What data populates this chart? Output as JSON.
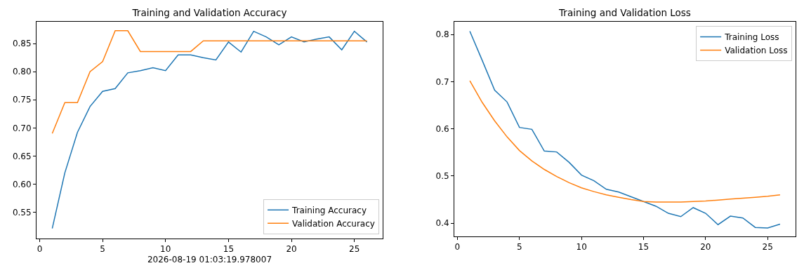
{
  "chart_data": [
    {
      "type": "line",
      "title": "Training and Validation Accuracy",
      "xlabel": "2026-08-19 01:03:19.978007",
      "x": [
        1,
        2,
        3,
        4,
        5,
        6,
        7,
        8,
        9,
        10,
        11,
        12,
        13,
        14,
        15,
        16,
        17,
        18,
        19,
        20,
        21,
        22,
        23,
        24,
        25,
        26
      ],
      "series": [
        {
          "name": "Training Accuracy",
          "color": "#1f77b4",
          "values": [
            0.521,
            0.62,
            0.692,
            0.738,
            0.765,
            0.77,
            0.798,
            0.802,
            0.807,
            0.802,
            0.83,
            0.83,
            0.825,
            0.821,
            0.853,
            0.835,
            0.872,
            0.862,
            0.848,
            0.862,
            0.853,
            0.858,
            0.862,
            0.839,
            0.872,
            0.853
          ]
        },
        {
          "name": "Validation Accuracy",
          "color": "#ff7f0e",
          "values": [
            0.69,
            0.745,
            0.745,
            0.8,
            0.818,
            0.873,
            0.873,
            0.836,
            0.836,
            0.836,
            0.836,
            0.836,
            0.855,
            0.855,
            0.855,
            0.855,
            0.855,
            0.855,
            0.855,
            0.855,
            0.855,
            0.855,
            0.855,
            0.855,
            0.855,
            0.855
          ]
        }
      ],
      "xlim": [
        -0.25,
        27.25
      ],
      "xticks": [
        0,
        5,
        10,
        15,
        20,
        25
      ],
      "ylim": [
        0.503,
        0.889
      ],
      "yticks": [
        0.55,
        {
          "value": 0.6,
          "label": "0.60"
        },
        0.65,
        {
          "value": 0.7,
          "label": "0.70"
        },
        0.75,
        {
          "value": 0.8,
          "label": "0.80"
        },
        0.85
      ],
      "grid": false,
      "legend": "bottom right",
      "line_style": "solid",
      "marker": "none"
    },
    {
      "type": "line",
      "title": "Training and Validation Loss",
      "x": [
        1,
        2,
        3,
        4,
        5,
        6,
        7,
        8,
        9,
        10,
        11,
        12,
        13,
        14,
        15,
        16,
        17,
        18,
        19,
        20,
        21,
        22,
        23,
        24,
        25,
        26
      ],
      "series": [
        {
          "name": "Training Loss",
          "color": "#1f77b4",
          "values": [
            0.807,
            0.745,
            0.682,
            0.657,
            0.603,
            0.599,
            0.553,
            0.551,
            0.529,
            0.502,
            0.49,
            0.472,
            0.466,
            0.456,
            0.446,
            0.436,
            0.421,
            0.414,
            0.433,
            0.421,
            0.397,
            0.415,
            0.411,
            0.391,
            0.39,
            0.398
          ]
        },
        {
          "name": "Validation Loss",
          "color": "#ff7f0e",
          "values": [
            0.702,
            0.656,
            0.617,
            0.583,
            0.554,
            0.532,
            0.514,
            0.499,
            0.486,
            0.475,
            0.467,
            0.46,
            0.455,
            0.45,
            0.446,
            0.445,
            0.445,
            0.445,
            0.446,
            0.447,
            0.449,
            0.451,
            0.453,
            0.455,
            0.457,
            0.46
          ]
        }
      ],
      "xlim": [
        -0.25,
        27.25
      ],
      "xticks": [
        0,
        5,
        10,
        15,
        20,
        25
      ],
      "ylim": [
        0.372,
        0.827
      ],
      "yticks": [
        0.4,
        0.5,
        0.6,
        0.7,
        0.8
      ],
      "grid": false,
      "legend": "top right",
      "line_style": "solid",
      "marker": "none"
    }
  ]
}
